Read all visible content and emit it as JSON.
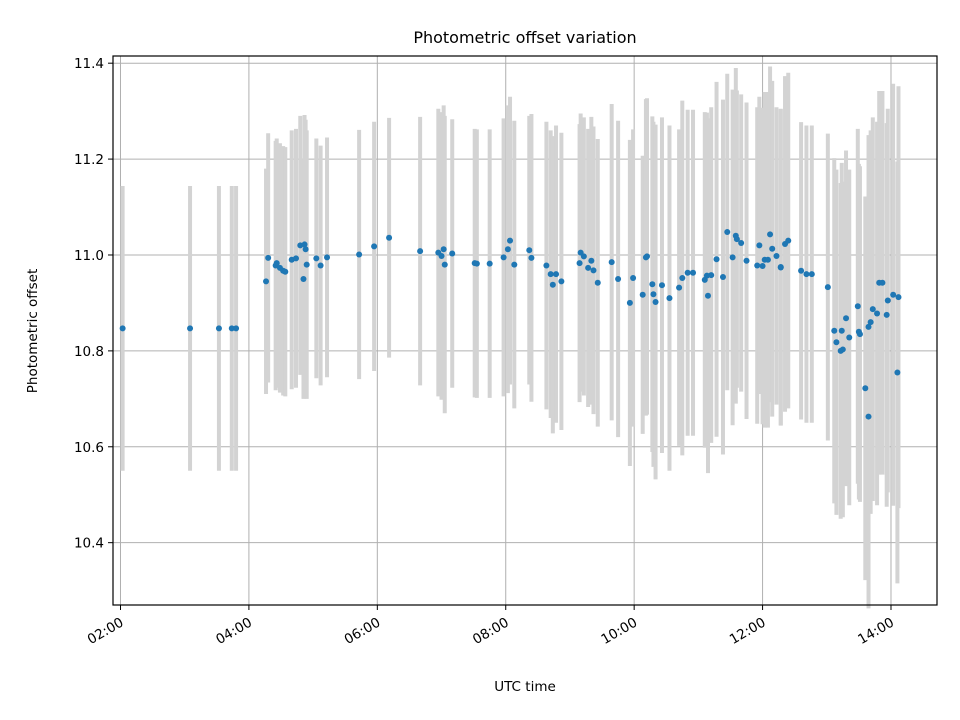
{
  "chart_data": {
    "type": "scatter",
    "title": "Photometric offset variation",
    "xlabel": "UTC time",
    "ylabel": "Photometric offset",
    "x_axis_kind": "time",
    "xlim": [
      "01:53",
      "14:43"
    ],
    "ylim": [
      10.27,
      11.415
    ],
    "x_ticks": [
      "02:00",
      "04:00",
      "06:00",
      "08:00",
      "10:00",
      "12:00",
      "14:00"
    ],
    "y_ticks": [
      "10.4",
      "10.6",
      "10.8",
      "11.0",
      "11.2",
      "11.4"
    ],
    "grid": true,
    "legend": "none",
    "colors": {
      "point": "#1f77b4",
      "errorbar": "#d3d3d3",
      "grid": "#b0b0b0"
    },
    "series": [
      {
        "x": [
          "02:02",
          "03:05",
          "03:32",
          "03:44",
          "03:48",
          "04:16",
          "04:18",
          "04:25",
          "04:26",
          "04:29",
          "04:32",
          "04:34",
          "04:40",
          "04:44",
          "04:48",
          "04:51",
          "04:52",
          "04:53",
          "04:54",
          "05:03",
          "05:07",
          "05:13",
          "05:43",
          "05:57",
          "06:11",
          "06:40",
          "06:57",
          "07:00",
          "07:02",
          "07:03",
          "07:10",
          "07:31",
          "07:33",
          "07:45",
          "07:58",
          "08:02",
          "08:04",
          "08:08",
          "08:22",
          "08:24",
          "08:38",
          "08:42",
          "08:44",
          "08:47",
          "08:52",
          "09:09",
          "09:10",
          "09:13",
          "09:17",
          "09:20",
          "09:22",
          "09:26",
          "09:39",
          "09:45",
          "09:56",
          "09:59",
          "10:08",
          "10:11",
          "10:12",
          "10:17",
          "10:18",
          "10:20",
          "10:26",
          "10:33",
          "10:42",
          "10:45",
          "10:50",
          "10:55",
          "11:06",
          "11:08",
          "11:09",
          "11:12",
          "11:17",
          "11:23",
          "11:27",
          "11:32",
          "11:35",
          "11:36",
          "11:40",
          "11:45",
          "11:55",
          "11:57",
          "12:00",
          "12:02",
          "12:05",
          "12:07",
          "12:09",
          "12:13",
          "12:17",
          "12:17",
          "12:21",
          "12:24",
          "12:36",
          "12:41",
          "12:46",
          "13:01",
          "13:07",
          "13:09",
          "13:13",
          "13:14",
          "13:15",
          "13:18",
          "13:21",
          "13:29",
          "13:30",
          "13:31",
          "13:36",
          "13:39",
          "13:39",
          "13:41",
          "13:43",
          "13:47",
          "13:49",
          "13:52",
          "13:56",
          "13:57",
          "14:02",
          "14:06",
          "14:07"
        ],
        "y": [
          10.847,
          10.847,
          10.847,
          10.847,
          10.847,
          10.945,
          10.994,
          10.978,
          10.983,
          10.973,
          10.967,
          10.965,
          10.99,
          10.993,
          11.02,
          10.95,
          11.022,
          11.012,
          10.98,
          10.993,
          10.978,
          10.995,
          11.001,
          11.018,
          11.036,
          11.008,
          11.005,
          10.998,
          11.012,
          10.98,
          11.003,
          10.983,
          10.982,
          10.982,
          10.995,
          11.012,
          11.03,
          10.98,
          11.01,
          10.994,
          10.978,
          10.96,
          10.938,
          10.96,
          10.945,
          10.983,
          11.005,
          10.997,
          10.973,
          10.988,
          10.968,
          10.942,
          10.985,
          10.95,
          10.9,
          10.952,
          10.917,
          10.995,
          10.997,
          10.939,
          10.918,
          10.902,
          10.937,
          10.91,
          10.932,
          10.952,
          10.963,
          10.963,
          10.948,
          10.957,
          10.915,
          10.958,
          10.991,
          10.954,
          11.048,
          10.995,
          11.04,
          11.033,
          11.025,
          10.988,
          10.978,
          11.02,
          10.977,
          10.99,
          10.99,
          11.043,
          11.013,
          10.998,
          10.975,
          10.974,
          11.023,
          11.03,
          10.967,
          10.96,
          10.96,
          10.933,
          10.842,
          10.818,
          10.8,
          10.842,
          10.803,
          10.868,
          10.828,
          10.893,
          10.84,
          10.835,
          10.722,
          10.85,
          10.663,
          10.86,
          10.887,
          10.878,
          10.942,
          10.942,
          10.875,
          10.905,
          10.917,
          10.755,
          10.912
        ],
        "yerr": [
          0.297,
          0.297,
          0.297,
          0.297,
          0.297,
          0.235,
          0.26,
          0.26,
          0.26,
          0.26,
          0.26,
          0.26,
          0.27,
          0.27,
          0.27,
          0.25,
          0.27,
          0.27,
          0.28,
          0.25,
          0.25,
          0.25,
          0.26,
          0.26,
          0.25,
          0.28,
          0.3,
          0.3,
          0.3,
          0.31,
          0.28,
          0.28,
          0.28,
          0.28,
          0.29,
          0.3,
          0.3,
          0.3,
          0.28,
          0.3,
          0.3,
          0.3,
          0.31,
          0.31,
          0.31,
          0.29,
          0.29,
          0.29,
          0.29,
          0.3,
          0.3,
          0.3,
          0.33,
          0.33,
          0.34,
          0.31,
          0.29,
          0.33,
          0.33,
          0.35,
          0.36,
          0.37,
          0.35,
          0.36,
          0.33,
          0.37,
          0.34,
          0.34,
          0.35,
          0.34,
          0.37,
          0.35,
          0.37,
          0.37,
          0.33,
          0.35,
          0.35,
          0.31,
          0.31,
          0.33,
          0.33,
          0.31,
          0.33,
          0.35,
          0.35,
          0.35,
          0.35,
          0.31,
          0.33,
          0.33,
          0.35,
          0.35,
          0.31,
          0.31,
          0.31,
          0.32,
          0.36,
          0.36,
          0.35,
          0.35,
          0.35,
          0.35,
          0.35,
          0.37,
          0.35,
          0.35,
          0.4,
          0.4,
          0.4,
          0.4,
          0.4,
          0.4,
          0.4,
          0.4,
          0.4,
          0.4,
          0.44,
          0.44,
          0.44
        ]
      }
    ]
  }
}
